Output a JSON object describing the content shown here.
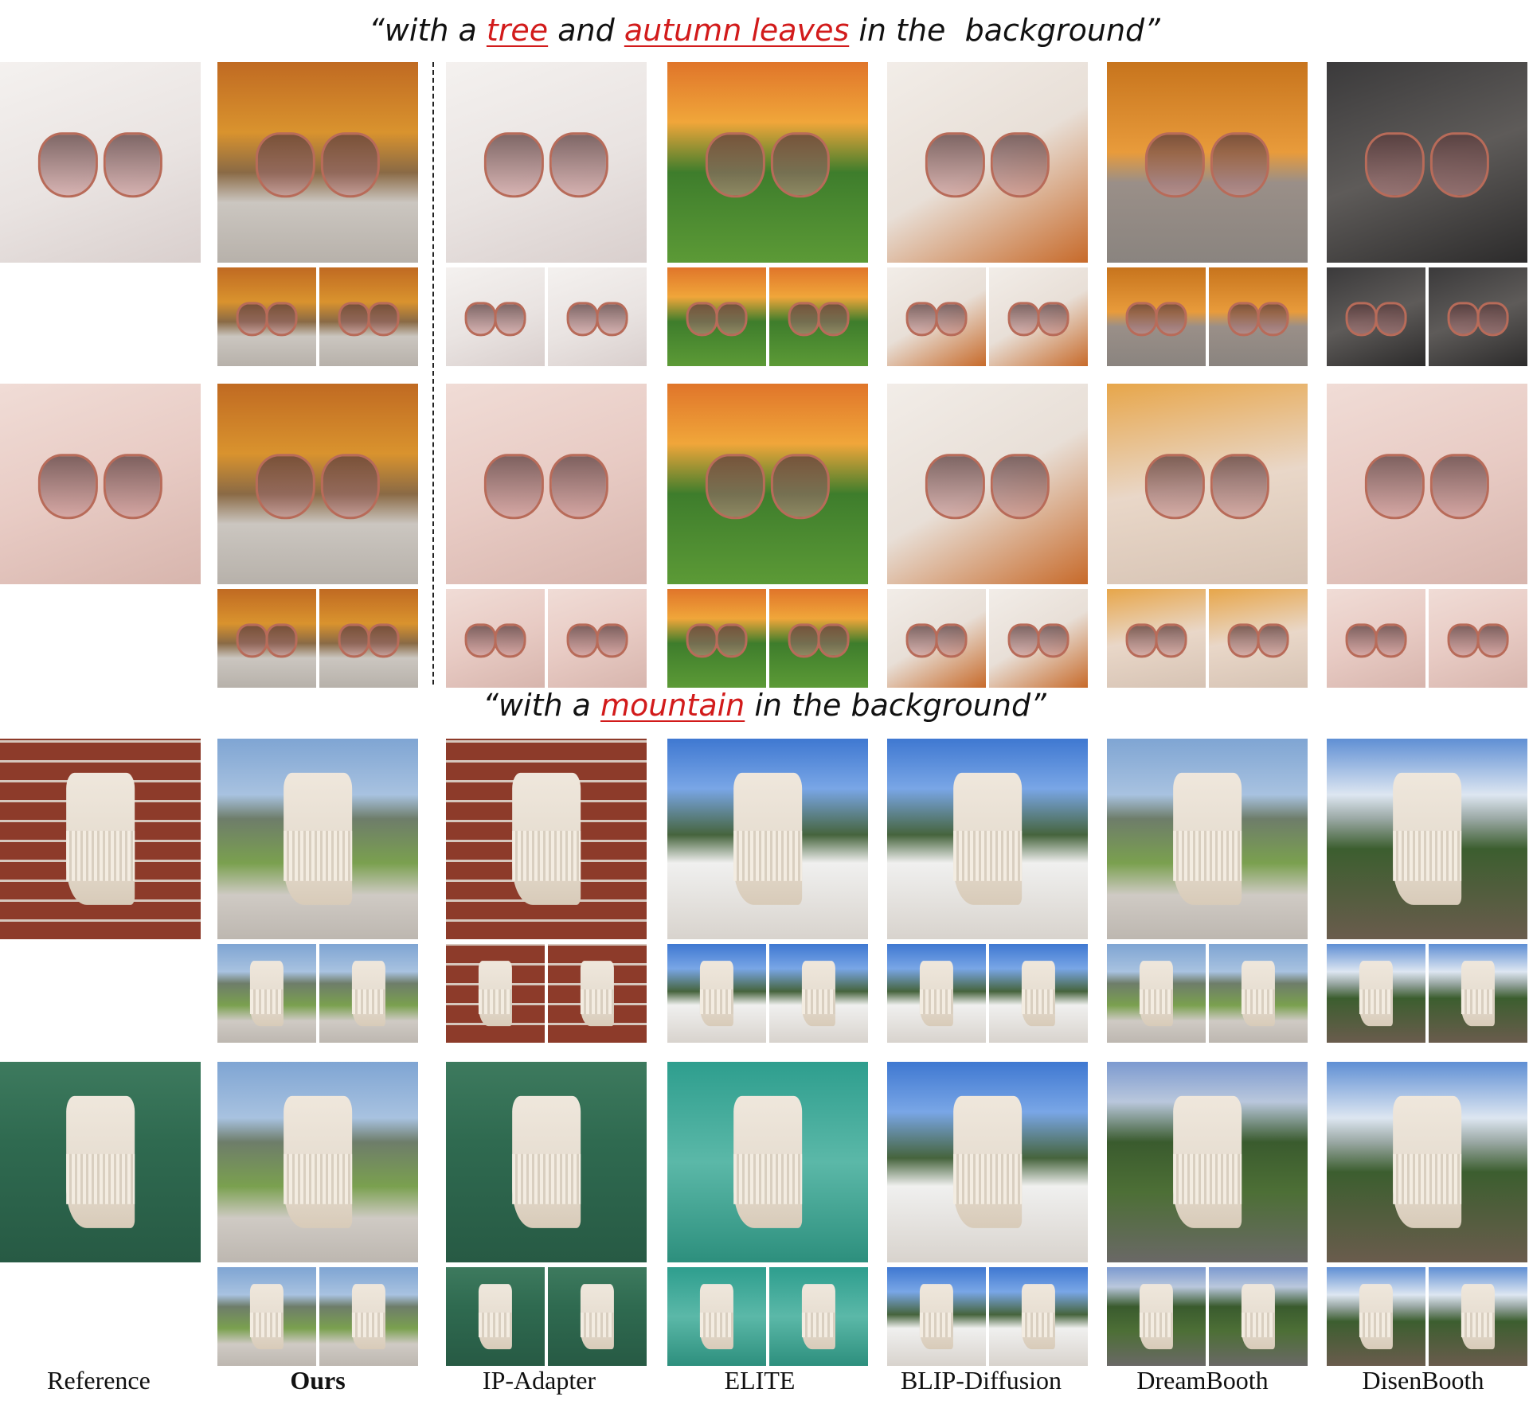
{
  "captions": {
    "top": {
      "open": "“with a ",
      "w1": "tree",
      "mid": " and ",
      "w2": "autumn leaves",
      "close": " in the  background”"
    },
    "bottom": {
      "open": "“with a ",
      "w1": "mountain",
      "close": " in the background”"
    }
  },
  "columns": [
    "Reference",
    "Ours",
    "IP-Adapter",
    "ELITE",
    "BLIP-Diffusion",
    "DreamBooth",
    "DisenBooth"
  ],
  "colors": {
    "highlight": "#d21b1b",
    "text": "#111111"
  }
}
